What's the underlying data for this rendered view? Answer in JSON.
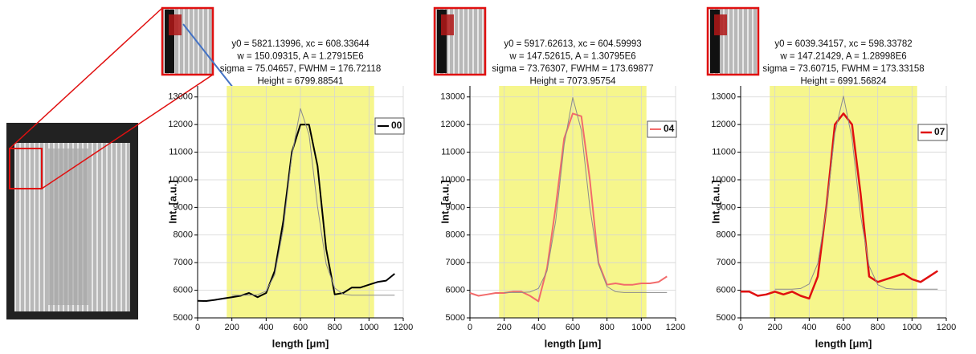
{
  "chart_data": [
    {
      "type": "line",
      "annotation": [
        "y0 = 5821.13996, xc = 608.33644",
        "w = 150.09315, A = 1.27915E6",
        "sigma = 75.04657, FWHM = 176.72118",
        "Height = 6799.88541"
      ],
      "x_label": "length [μm]",
      "y_label": "Int. [a.u.]",
      "x": [
        0,
        50,
        100,
        150,
        200,
        250,
        300,
        350,
        400,
        450,
        500,
        550,
        600,
        650,
        700,
        750,
        800,
        850,
        900,
        950,
        1000,
        1050,
        1100,
        1150
      ],
      "series": [
        {
          "name": "00",
          "color": "#000000",
          "width": 2,
          "values": [
            5620,
            5610,
            5650,
            5700,
            5750,
            5800,
            5900,
            5750,
            5900,
            6700,
            8500,
            11000,
            12000,
            12000,
            10500,
            7500,
            5850,
            5900,
            6100,
            6100,
            6200,
            6300,
            6350,
            6600
          ]
        },
        {
          "color": "#8c8c8c",
          "width": 1,
          "values": [
            null,
            null,
            null,
            null,
            5821,
            5821,
            5822,
            5839,
            5967,
            6562,
            8235,
            10866,
            12580,
            11635,
            9024,
            6957,
            6077,
            5858,
            5821,
            5821,
            5821,
            5821,
            5821,
            5821
          ]
        }
      ],
      "xlim": [
        0,
        1200
      ],
      "ylim": [
        5000,
        13400
      ],
      "xticks": [
        0,
        200,
        400,
        600,
        800,
        1000,
        1200
      ],
      "yticks": [
        5000,
        6000,
        7000,
        8000,
        9000,
        10000,
        11000,
        12000,
        13000
      ],
      "grid": true,
      "highlight": {
        "range": [
          170,
          1030
        ],
        "color": "#f6f68c"
      },
      "legend": "upper right"
    },
    {
      "type": "line",
      "annotation": [
        "y0 = 5917.62613, xc = 604.59993",
        "w = 147.52615, A = 1.30795E6",
        "sigma = 73.76307, FWHM = 173.69877",
        "Height = 7073.95754"
      ],
      "x_label": "length [μm]",
      "y_label": "Int. [a.u.]",
      "x": [
        0,
        50,
        100,
        150,
        200,
        250,
        300,
        350,
        400,
        450,
        500,
        550,
        600,
        650,
        700,
        750,
        800,
        850,
        900,
        950,
        1000,
        1050,
        1100,
        1150
      ],
      "series": [
        {
          "name": "04",
          "color": "#f26b6b",
          "width": 2,
          "values": [
            5900,
            5800,
            5850,
            5900,
            5900,
            5950,
            5950,
            5800,
            5600,
            6800,
            9000,
            11500,
            12400,
            12300,
            10000,
            7000,
            6200,
            6250,
            6200,
            6200,
            6250,
            6250,
            6300,
            6500
          ]
        },
        {
          "color": "#8c8c8c",
          "width": 1,
          "values": [
            null,
            null,
            null,
            null,
            5918,
            5918,
            5919,
            5936,
            6067,
            6696,
            8493,
            11273,
            12978,
            11790,
            9002,
            6944,
            6134,
            5948,
            5918,
            5918,
            5918,
            5918,
            5918,
            5918
          ]
        }
      ],
      "xlim": [
        0,
        1200
      ],
      "ylim": [
        5000,
        13400
      ],
      "xticks": [
        0,
        200,
        400,
        600,
        800,
        1000,
        1200
      ],
      "yticks": [
        5000,
        6000,
        7000,
        8000,
        9000,
        10000,
        11000,
        12000,
        13000
      ],
      "grid": true,
      "highlight": {
        "range": [
          170,
          1030
        ],
        "color": "#f6f68c"
      },
      "legend": "upper right"
    },
    {
      "type": "line",
      "annotation": [
        "y0 = 6039.34157, xc = 598.33782",
        "w = 147.21429, A = 1.28998E6",
        "sigma = 73.60715, FWHM = 173.33158",
        "Height = 6991.56824"
      ],
      "x_label": "length [μm]",
      "y_label": "Int. [a.u.]",
      "x": [
        0,
        50,
        100,
        150,
        200,
        250,
        300,
        350,
        400,
        450,
        500,
        550,
        600,
        650,
        700,
        750,
        800,
        850,
        900,
        950,
        1000,
        1050,
        1100,
        1150
      ],
      "series": [
        {
          "name": "07",
          "color": "#e01010",
          "width": 2.5,
          "values": [
            5950,
            5950,
            5800,
            5850,
            5950,
            5850,
            5950,
            5800,
            5700,
            6500,
            9000,
            12000,
            12400,
            12000,
            9500,
            6500,
            6300,
            6400,
            6500,
            6600,
            6400,
            6300,
            6500,
            6700
          ]
        },
        {
          "color": "#8c8c8c",
          "width": 1,
          "values": [
            null,
            null,
            null,
            null,
            6039,
            6039,
            6040,
            6063,
            6226,
            6969,
            8920,
            11689,
            13031,
            11486,
            8717,
            6871,
            6200,
            6064,
            6039,
            6039,
            6039,
            6039,
            6039,
            6039
          ]
        }
      ],
      "xlim": [
        0,
        1200
      ],
      "ylim": [
        5000,
        13400
      ],
      "xticks": [
        0,
        200,
        400,
        600,
        800,
        1000,
        1200
      ],
      "yticks": [
        5000,
        6000,
        7000,
        8000,
        9000,
        10000,
        11000,
        12000,
        13000
      ],
      "grid": true,
      "highlight": {
        "range": [
          170,
          1030
        ],
        "color": "#f6f68c"
      },
      "legend": "upper right"
    }
  ]
}
